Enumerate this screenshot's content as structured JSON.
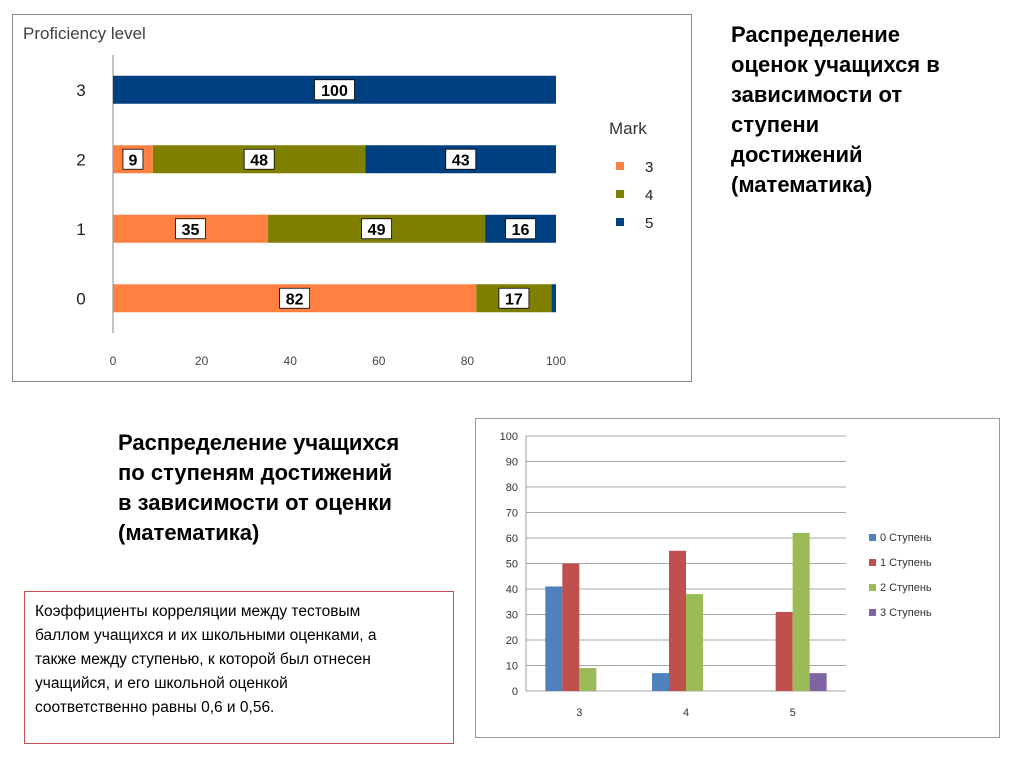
{
  "headings": {
    "chart1_caption": "Распределение\nоценок учащихся в\nзависимости от\nступени\nдостижений\n(математика)",
    "chart2_caption": "Распределение учащихся\nпо ступеням достижений\nв зависимости от оценки\n(математика)"
  },
  "note": {
    "text": " Коэффициенты корреляции между тестовым\n баллом учащихся и их школьными оценками, а\nтакже между ступенью, к которой был отнесен\nучащийся, и его школьной оценкой\nсоответственно  равны 0,6 и 0,56."
  },
  "chart_data": [
    {
      "type": "bar",
      "orientation": "horizontal",
      "stacked": true,
      "title": "",
      "ylabel": "Proficiency level",
      "categories": [
        "0",
        "1",
        "2",
        "3"
      ],
      "series": [
        {
          "name": "3",
          "color": "#ff8040",
          "values": [
            82,
            35,
            9,
            0
          ]
        },
        {
          "name": "4",
          "color": "#808000",
          "values": [
            17,
            49,
            48,
            0
          ]
        },
        {
          "name": "5",
          "color": "#004080",
          "values": [
            1,
            16,
            43,
            100
          ]
        }
      ],
      "data_labels": [
        [
          "82",
          "17",
          ""
        ],
        [
          "35",
          "49",
          "16"
        ],
        [
          "9",
          "48",
          "43"
        ],
        [
          "",
          "",
          "100"
        ]
      ],
      "legend_title": "Mark",
      "legend_position": "right",
      "xlim": [
        0,
        100
      ],
      "xticks": [
        "0",
        "20",
        "40",
        "60",
        "80",
        "100"
      ],
      "grid": false
    },
    {
      "type": "bar",
      "orientation": "vertical",
      "stacked": false,
      "title": "",
      "categories": [
        "3",
        "4",
        "5"
      ],
      "series": [
        {
          "name": "0 Ступень",
          "color": "#4f81bd",
          "values": [
            41,
            7,
            0
          ]
        },
        {
          "name": "1 Ступень",
          "color": "#c0504d",
          "values": [
            50,
            55,
            31
          ]
        },
        {
          "name": "2 Ступень",
          "color": "#9bbb59",
          "values": [
            9,
            38,
            62
          ]
        },
        {
          "name": "3 Ступень",
          "color": "#8064a2",
          "values": [
            0,
            0,
            7
          ]
        }
      ],
      "legend_position": "right",
      "ylim": [
        0,
        100
      ],
      "yticks": [
        "0",
        "10",
        "20",
        "30",
        "40",
        "50",
        "60",
        "70",
        "80",
        "90",
        "100"
      ],
      "grid": true
    }
  ]
}
